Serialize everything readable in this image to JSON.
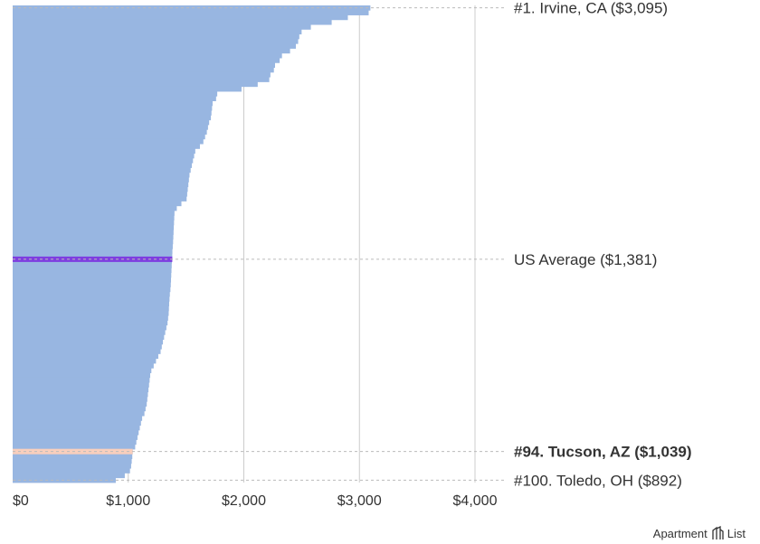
{
  "chart_data": {
    "type": "bar",
    "orientation": "horizontal",
    "n_cities": 100,
    "values": [
      3095,
      3080,
      2900,
      2760,
      2580,
      2500,
      2480,
      2470,
      2450,
      2400,
      2330,
      2310,
      2270,
      2260,
      2230,
      2220,
      2120,
      1980,
      1770,
      1760,
      1730,
      1725,
      1720,
      1715,
      1700,
      1690,
      1680,
      1665,
      1650,
      1620,
      1580,
      1570,
      1560,
      1550,
      1540,
      1530,
      1525,
      1520,
      1515,
      1510,
      1505,
      1460,
      1420,
      1400,
      1398,
      1396,
      1394,
      1392,
      1390,
      1388,
      1385,
      1382,
      1381,
      1378,
      1376,
      1374,
      1372,
      1370,
      1368,
      1365,
      1360,
      1357,
      1354,
      1352,
      1350,
      1345,
      1340,
      1330,
      1320,
      1310,
      1300,
      1290,
      1280,
      1260,
      1240,
      1220,
      1200,
      1190,
      1185,
      1180,
      1175,
      1170,
      1165,
      1160,
      1150,
      1140,
      1120,
      1110,
      1100,
      1090,
      1080,
      1070,
      1060,
      1039,
      1035,
      1030,
      1025,
      1015,
      970,
      892
    ],
    "highlights": [
      {
        "type": "average",
        "value": 1381,
        "label": "US Average ($1,381)",
        "color": "#7e3ee0"
      },
      {
        "type": "city",
        "rank": 94,
        "value": 1039,
        "label": "#94. Tucson, AZ ($1,039)",
        "color": "#f9cfbd"
      }
    ],
    "annotations": [
      {
        "rank": 1,
        "label": "#1. Irvine, CA ($3,095)"
      },
      {
        "rank": 100,
        "label": "#100. Toledo, OH ($892)"
      }
    ],
    "xlim": [
      0,
      4000
    ],
    "xticks": [
      0,
      1000,
      2000,
      3000,
      4000
    ],
    "xtick_labels": [
      "$0",
      "$1,000",
      "$2,000",
      "$3,000",
      "$4,000"
    ],
    "bar_color": "#98b6e1",
    "grid": true
  },
  "branding": {
    "left": "Apartment",
    "right": "List"
  }
}
